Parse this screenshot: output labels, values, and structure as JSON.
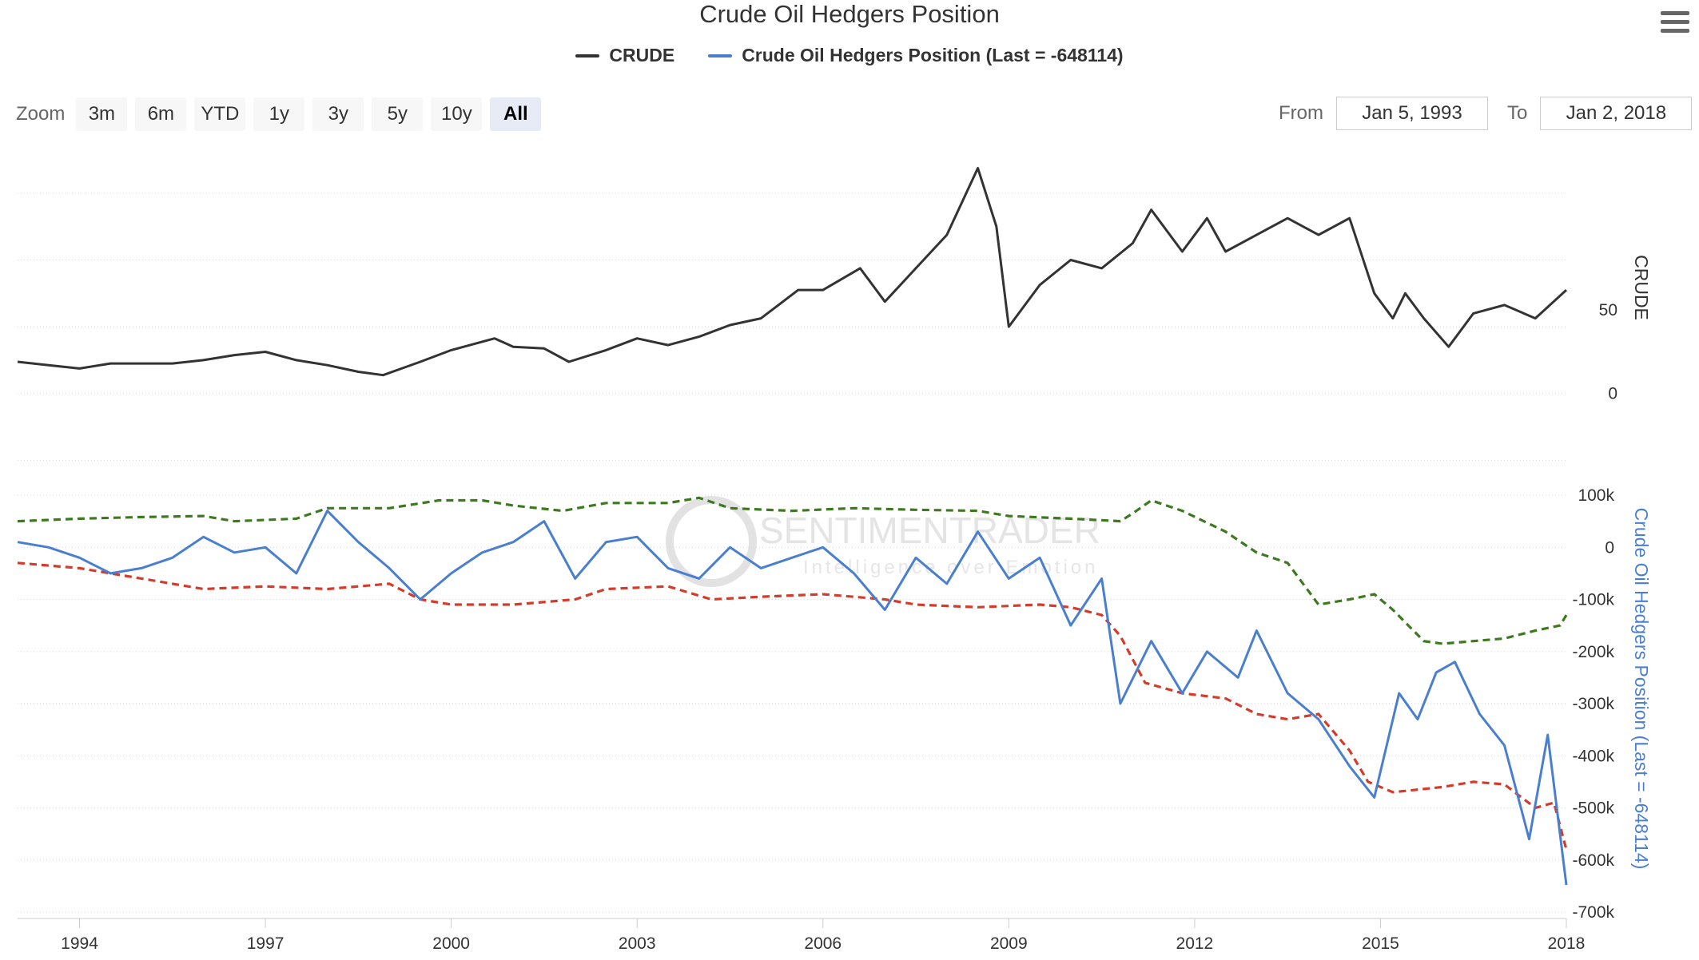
{
  "title": "Crude Oil Hedgers Position",
  "menu_icon": "hamburger-menu-icon",
  "legend": [
    {
      "label": "CRUDE",
      "color": "#333333"
    },
    {
      "label": "Crude Oil Hedgers Position (Last = -648114)",
      "color": "#4a7fcf"
    }
  ],
  "zoom": {
    "label": "Zoom",
    "buttons": [
      "3m",
      "6m",
      "YTD",
      "1y",
      "3y",
      "5y",
      "10y",
      "All"
    ],
    "active": "All"
  },
  "range": {
    "from_label": "From",
    "from_value": "Jan 5, 1993",
    "to_label": "To",
    "to_value": "Jan 2, 2018"
  },
  "watermark": {
    "line1": "SENTIMENTRADER",
    "line2": "Intelligence over Emotion"
  },
  "chart_data": [
    {
      "type": "line",
      "name": "CRUDE",
      "ylabel": "CRUDE",
      "y_ticks": [
        "0",
        "50"
      ],
      "ylim": [
        -25,
        140
      ],
      "color": "#333333",
      "grid": true,
      "points": [
        [
          1993.0,
          19
        ],
        [
          1993.5,
          17
        ],
        [
          1994.0,
          15
        ],
        [
          1994.5,
          18
        ],
        [
          1995.0,
          18
        ],
        [
          1995.5,
          18
        ],
        [
          1996.0,
          20
        ],
        [
          1996.5,
          23
        ],
        [
          1997.0,
          25
        ],
        [
          1997.5,
          20
        ],
        [
          1998.0,
          17
        ],
        [
          1998.5,
          13
        ],
        [
          1998.9,
          11
        ],
        [
          1999.5,
          19
        ],
        [
          2000.0,
          26
        ],
        [
          2000.7,
          33
        ],
        [
          2001.0,
          28
        ],
        [
          2001.5,
          27
        ],
        [
          2001.9,
          19
        ],
        [
          2002.5,
          26
        ],
        [
          2003.0,
          33
        ],
        [
          2003.5,
          29
        ],
        [
          2004.0,
          34
        ],
        [
          2004.5,
          41
        ],
        [
          2005.0,
          45
        ],
        [
          2005.6,
          62
        ],
        [
          2006.0,
          62
        ],
        [
          2006.6,
          75
        ],
        [
          2007.0,
          55
        ],
        [
          2007.5,
          75
        ],
        [
          2008.0,
          95
        ],
        [
          2008.5,
          135
        ],
        [
          2008.8,
          100
        ],
        [
          2009.0,
          40
        ],
        [
          2009.5,
          65
        ],
        [
          2010.0,
          80
        ],
        [
          2010.5,
          75
        ],
        [
          2011.0,
          90
        ],
        [
          2011.3,
          110
        ],
        [
          2011.8,
          85
        ],
        [
          2012.2,
          105
        ],
        [
          2012.5,
          85
        ],
        [
          2013.0,
          95
        ],
        [
          2013.5,
          105
        ],
        [
          2014.0,
          95
        ],
        [
          2014.5,
          105
        ],
        [
          2014.9,
          60
        ],
        [
          2015.2,
          45
        ],
        [
          2015.4,
          60
        ],
        [
          2015.7,
          45
        ],
        [
          2016.1,
          28
        ],
        [
          2016.5,
          48
        ],
        [
          2017.0,
          53
        ],
        [
          2017.5,
          45
        ],
        [
          2018.0,
          62
        ]
      ]
    },
    {
      "type": "line",
      "name": "Crude Oil Hedgers Position (Last = -648114)",
      "ylabel": "Crude Oil Hedgers Position (Last = -648114)",
      "y_ticks": [
        "100k",
        "0",
        "-100k",
        "-200k",
        "-300k",
        "-400k",
        "-500k",
        "-600k",
        "-700k"
      ],
      "ylim": [
        -700000,
        100000
      ],
      "color": "#4a7fcf",
      "grid": true,
      "points": [
        [
          1993.0,
          10000
        ],
        [
          1993.5,
          0
        ],
        [
          1994.0,
          -20000
        ],
        [
          1994.5,
          -50000
        ],
        [
          1995.0,
          -40000
        ],
        [
          1995.5,
          -20000
        ],
        [
          1996.0,
          20000
        ],
        [
          1996.5,
          -10000
        ],
        [
          1997.0,
          0
        ],
        [
          1997.5,
          -50000
        ],
        [
          1998.0,
          70000
        ],
        [
          1998.5,
          10000
        ],
        [
          1999.0,
          -40000
        ],
        [
          1999.5,
          -100000
        ],
        [
          2000.0,
          -50000
        ],
        [
          2000.5,
          -10000
        ],
        [
          2001.0,
          10000
        ],
        [
          2001.5,
          50000
        ],
        [
          2002.0,
          -60000
        ],
        [
          2002.5,
          10000
        ],
        [
          2003.0,
          20000
        ],
        [
          2003.5,
          -40000
        ],
        [
          2004.0,
          -60000
        ],
        [
          2004.5,
          0
        ],
        [
          2005.0,
          -40000
        ],
        [
          2005.5,
          -20000
        ],
        [
          2006.0,
          0
        ],
        [
          2006.5,
          -50000
        ],
        [
          2007.0,
          -120000
        ],
        [
          2007.5,
          -20000
        ],
        [
          2008.0,
          -70000
        ],
        [
          2008.5,
          30000
        ],
        [
          2009.0,
          -60000
        ],
        [
          2009.5,
          -20000
        ],
        [
          2010.0,
          -150000
        ],
        [
          2010.5,
          -60000
        ],
        [
          2010.8,
          -300000
        ],
        [
          2011.3,
          -180000
        ],
        [
          2011.8,
          -280000
        ],
        [
          2012.2,
          -200000
        ],
        [
          2012.7,
          -250000
        ],
        [
          2013.0,
          -160000
        ],
        [
          2013.5,
          -280000
        ],
        [
          2014.0,
          -330000
        ],
        [
          2014.5,
          -420000
        ],
        [
          2014.9,
          -480000
        ],
        [
          2015.3,
          -280000
        ],
        [
          2015.6,
          -330000
        ],
        [
          2015.9,
          -240000
        ],
        [
          2016.2,
          -220000
        ],
        [
          2016.6,
          -320000
        ],
        [
          2017.0,
          -380000
        ],
        [
          2017.4,
          -560000
        ],
        [
          2017.7,
          -360000
        ],
        [
          2018.0,
          -648114
        ]
      ]
    },
    {
      "type": "line",
      "name": "",
      "style": "dashed",
      "color": "#3d7a1f",
      "points": [
        [
          1993.0,
          50000
        ],
        [
          1994.0,
          55000
        ],
        [
          1995.0,
          58000
        ],
        [
          1996.0,
          60000
        ],
        [
          1996.5,
          50000
        ],
        [
          1997.5,
          55000
        ],
        [
          1998.0,
          75000
        ],
        [
          1999.0,
          75000
        ],
        [
          1999.8,
          90000
        ],
        [
          2000.5,
          90000
        ],
        [
          2001.0,
          80000
        ],
        [
          2001.8,
          70000
        ],
        [
          2002.5,
          85000
        ],
        [
          2003.5,
          85000
        ],
        [
          2004.0,
          95000
        ],
        [
          2004.5,
          75000
        ],
        [
          2005.5,
          70000
        ],
        [
          2006.5,
          75000
        ],
        [
          2007.5,
          72000
        ],
        [
          2008.5,
          70000
        ],
        [
          2009.0,
          60000
        ],
        [
          2010.0,
          55000
        ],
        [
          2010.8,
          50000
        ],
        [
          2011.0,
          65000
        ],
        [
          2011.3,
          90000
        ],
        [
          2011.8,
          70000
        ],
        [
          2012.5,
          30000
        ],
        [
          2013.0,
          -10000
        ],
        [
          2013.5,
          -30000
        ],
        [
          2014.0,
          -110000
        ],
        [
          2014.5,
          -100000
        ],
        [
          2014.9,
          -90000
        ],
        [
          2015.2,
          -120000
        ],
        [
          2015.7,
          -180000
        ],
        [
          2016.0,
          -185000
        ],
        [
          2016.5,
          -180000
        ],
        [
          2017.0,
          -175000
        ],
        [
          2017.5,
          -160000
        ],
        [
          2017.9,
          -150000
        ],
        [
          2018.0,
          -130000
        ]
      ]
    },
    {
      "type": "line",
      "name": "",
      "style": "dashed",
      "color": "#d33b2b",
      "points": [
        [
          1993.0,
          -30000
        ],
        [
          1994.0,
          -40000
        ],
        [
          1995.0,
          -60000
        ],
        [
          1996.0,
          -80000
        ],
        [
          1997.0,
          -75000
        ],
        [
          1998.0,
          -80000
        ],
        [
          1999.0,
          -70000
        ],
        [
          1999.5,
          -100000
        ],
        [
          2000.0,
          -110000
        ],
        [
          2001.0,
          -110000
        ],
        [
          2002.0,
          -100000
        ],
        [
          2002.5,
          -80000
        ],
        [
          2003.5,
          -75000
        ],
        [
          2004.2,
          -100000
        ],
        [
          2005.0,
          -95000
        ],
        [
          2006.0,
          -90000
        ],
        [
          2007.0,
          -100000
        ],
        [
          2007.5,
          -110000
        ],
        [
          2008.5,
          -115000
        ],
        [
          2009.5,
          -110000
        ],
        [
          2010.0,
          -115000
        ],
        [
          2010.5,
          -130000
        ],
        [
          2010.8,
          -170000
        ],
        [
          2011.2,
          -260000
        ],
        [
          2011.8,
          -280000
        ],
        [
          2012.5,
          -290000
        ],
        [
          2013.0,
          -320000
        ],
        [
          2013.5,
          -330000
        ],
        [
          2014.0,
          -320000
        ],
        [
          2014.5,
          -390000
        ],
        [
          2014.8,
          -450000
        ],
        [
          2015.2,
          -470000
        ],
        [
          2016.0,
          -460000
        ],
        [
          2016.5,
          -450000
        ],
        [
          2017.0,
          -455000
        ],
        [
          2017.5,
          -500000
        ],
        [
          2017.8,
          -490000
        ],
        [
          2018.0,
          -580000
        ]
      ]
    }
  ],
  "x_ticks": [
    "1994",
    "1997",
    "2000",
    "2003",
    "2006",
    "2009",
    "2012",
    "2015",
    "2018"
  ]
}
